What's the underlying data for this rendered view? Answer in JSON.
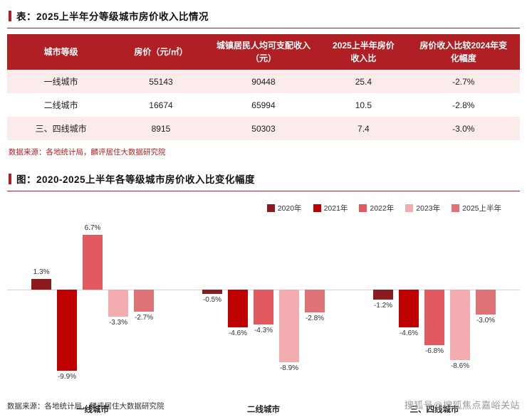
{
  "colors": {
    "accent": "#b01f24",
    "table_header_bg": "#b01f24",
    "row_alt_bg": "#fcebeb",
    "zero_line": "#eccaca",
    "watermark_gray": "#9a9a9a"
  },
  "table_section": {
    "title": "表：2025上半年分等级城市房价收入比情况",
    "columns": [
      "城市等级",
      "房价（元/㎡）",
      "城镇居民人均可支配收入（元）",
      "2025上半年房价收入比",
      "房价收入比较2024年变化幅度"
    ],
    "rows": [
      [
        "一线城市",
        "55143",
        "90448",
        "25.4",
        "-2.7%"
      ],
      [
        "二线城市",
        "16674",
        "65994",
        "10.5",
        "-2.8%"
      ],
      [
        "三、四线城市",
        "8915",
        "50303",
        "7.4",
        "-3.0%"
      ]
    ],
    "source": "数据来源：各地统计局，麟评居住大数据研究院"
  },
  "chart_section": {
    "source": "数据来源：各地统计局，麟评居住大数据研究院"
  },
  "chart_data": {
    "type": "bar",
    "title": "图：2020-2025上半年各等级城市房价收入比变化幅度",
    "categories": [
      "一线城市",
      "二线城市",
      "三、四线城市"
    ],
    "series": [
      {
        "name": "2020年",
        "color": "#8c1b20",
        "values": [
          1.3,
          -0.5,
          -1.2
        ]
      },
      {
        "name": "2021年",
        "color": "#c00000",
        "values": [
          -9.9,
          -4.6,
          -4.6
        ]
      },
      {
        "name": "2022年",
        "color": "#e05a60",
        "values": [
          6.7,
          -4.3,
          -6.8
        ]
      },
      {
        "name": "2023年",
        "color": "#f2abae",
        "values": [
          -3.3,
          -8.9,
          -8.6
        ]
      },
      {
        "name": "2025上半年",
        "color": "#df7276",
        "values": [
          -2.7,
          -2.8,
          -3.0
        ]
      }
    ],
    "value_suffix": "%",
    "ylim": [
      -11,
      8
    ],
    "baseline": 0,
    "grid": false,
    "legend_position": "top-right"
  },
  "watermark": "搜狐号@搜狐焦点嘉峪关站"
}
